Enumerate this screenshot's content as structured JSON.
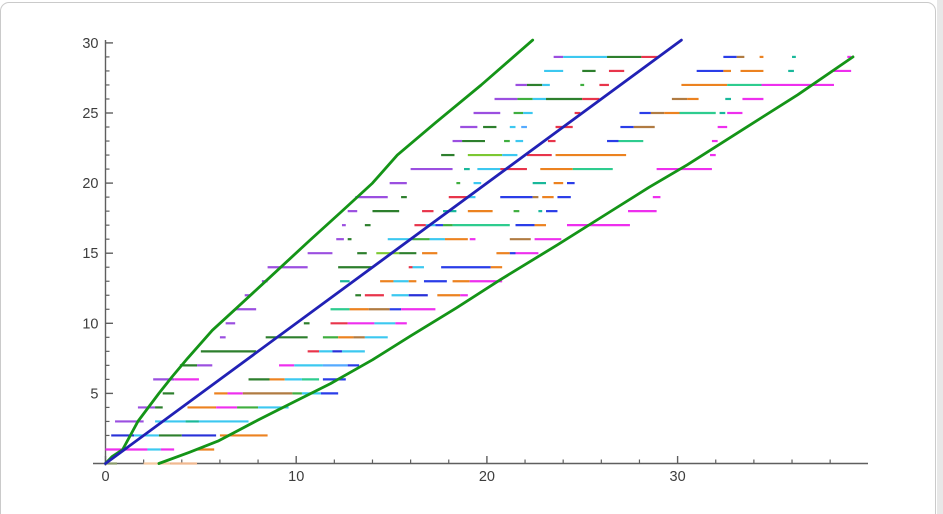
{
  "page": {
    "background": "#ffffff",
    "card_border": "#cacaca",
    "right_gutter": "#e8e8e8"
  },
  "chart_data": {
    "type": "line",
    "subtype": "interval-segment-plot",
    "title": "",
    "xlabel": "",
    "ylabel": "",
    "xlim": [
      0,
      40
    ],
    "ylim": [
      0,
      30
    ],
    "grid": false,
    "legend": "none",
    "axis_color": "#5f5f5f",
    "tick_label_color": "#3d3d3d",
    "x_major_ticks": [
      0,
      10,
      20,
      30
    ],
    "x_major_tick_labels": [
      "0",
      "10",
      "20",
      "30"
    ],
    "x_minor_step": 2,
    "y_major_ticks": [
      5,
      10,
      15,
      20,
      25,
      30
    ],
    "y_major_tick_labels": [
      "5",
      "10",
      "15",
      "20",
      "25",
      "30"
    ],
    "y_minor_step": 1,
    "curves": [
      {
        "name": "upper-bound-curve",
        "color": "#149417",
        "width": 2.8,
        "points": [
          [
            0,
            0
          ],
          [
            0.35,
            0.5
          ],
          [
            0.9,
            1
          ],
          [
            1.3,
            2
          ],
          [
            1.7,
            3
          ],
          [
            2.25,
            4
          ],
          [
            2.8,
            5
          ],
          [
            3.5,
            6.2
          ],
          [
            4.3,
            7.5
          ],
          [
            5.6,
            9.5
          ],
          [
            6.8,
            11
          ],
          [
            8.4,
            13
          ],
          [
            10.7,
            15.9
          ],
          [
            12.4,
            18
          ],
          [
            14,
            20
          ],
          [
            15.3,
            22
          ],
          [
            17.3,
            24.3
          ],
          [
            19.7,
            27
          ],
          [
            22.4,
            30.2
          ]
        ]
      },
      {
        "name": "diagonal-line",
        "color": "#2121b5",
        "width": 2.8,
        "points": [
          [
            0,
            0
          ],
          [
            30.2,
            30.2
          ]
        ]
      },
      {
        "name": "lower-bound-curve",
        "color": "#149417",
        "width": 2.8,
        "points": [
          [
            2.8,
            0
          ],
          [
            4.4,
            0.8
          ],
          [
            5.9,
            1.6
          ],
          [
            8.0,
            3.1
          ],
          [
            9.9,
            4.4
          ],
          [
            11.8,
            5.7
          ],
          [
            14.0,
            7.4
          ],
          [
            16.0,
            9.1
          ],
          [
            18.4,
            11.1
          ],
          [
            20.7,
            13.1
          ],
          [
            23.7,
            15.6
          ],
          [
            26.4,
            17.9
          ],
          [
            28.5,
            19.7
          ],
          [
            30.5,
            21.3
          ],
          [
            33.4,
            23.8
          ],
          [
            36.3,
            26.3
          ],
          [
            39.2,
            29.0
          ]
        ]
      }
    ],
    "segments": [
      [
        0,
        0.05,
        0.6,
        "#8a9a6a"
      ],
      [
        0,
        2.0,
        3.4,
        "#f6c9a2"
      ],
      [
        0,
        3.4,
        4.8,
        "#f0b990"
      ],
      [
        1,
        0.0,
        2.2,
        "#ee2fee"
      ],
      [
        1,
        2.2,
        2.9,
        "#3cc8f0"
      ],
      [
        1,
        2.9,
        3.6,
        "#ee2fee"
      ],
      [
        1,
        4.8,
        5.7,
        "#ec8220"
      ],
      [
        2,
        0.3,
        1.5,
        "#2831d8"
      ],
      [
        2,
        1.5,
        2.8,
        "#3cc8f0"
      ],
      [
        2,
        2.8,
        4.0,
        "#2d7f2d"
      ],
      [
        2,
        4.0,
        5.8,
        "#2831d8"
      ],
      [
        2,
        6.0,
        8.5,
        "#ec8220"
      ],
      [
        3,
        0.5,
        2.0,
        "#9b4fe0"
      ],
      [
        3,
        2.6,
        4.2,
        "#3cc8f0"
      ],
      [
        3,
        4.2,
        4.9,
        "#19b89a"
      ],
      [
        3,
        4.9,
        7.5,
        "#3cc8f0"
      ],
      [
        4,
        1.7,
        2.6,
        "#9b4fe0"
      ],
      [
        4,
        2.6,
        3.0,
        "#2d7f2d"
      ],
      [
        4,
        4.3,
        5.8,
        "#ec8220"
      ],
      [
        4,
        5.8,
        6.9,
        "#ee2fee"
      ],
      [
        4,
        6.9,
        8.0,
        "#3fae3f"
      ],
      [
        4,
        8.0,
        9.6,
        "#3cc8f0"
      ],
      [
        5,
        3.0,
        3.6,
        "#2d7f2d"
      ],
      [
        5,
        5.7,
        6.4,
        "#ec8220"
      ],
      [
        5,
        6.4,
        7.2,
        "#ee2fee"
      ],
      [
        5,
        7.2,
        9.8,
        "#b07b42"
      ],
      [
        5,
        9.8,
        10.3,
        "#3fae3f"
      ],
      [
        5,
        10.3,
        11.3,
        "#3cc8f0"
      ],
      [
        5,
        11.3,
        12.2,
        "#2a3de8"
      ],
      [
        6,
        2.5,
        3.6,
        "#9b4fe0"
      ],
      [
        6,
        3.6,
        4.9,
        "#ee2fee"
      ],
      [
        6,
        7.5,
        8.6,
        "#2d7f2d"
      ],
      [
        6,
        8.6,
        9.4,
        "#ec8220"
      ],
      [
        6,
        9.4,
        10.3,
        "#3cc8f0"
      ],
      [
        6,
        10.3,
        11.2,
        "#2ecc8f"
      ],
      [
        6,
        11.4,
        12.6,
        "#2a3de8"
      ],
      [
        7,
        3.9,
        4.8,
        "#2d7f2d"
      ],
      [
        7,
        4.8,
        5.6,
        "#9b4fe0"
      ],
      [
        7,
        9.1,
        9.9,
        "#ee2fee"
      ],
      [
        7,
        9.9,
        11.4,
        "#3cc8f0"
      ],
      [
        7,
        11.4,
        12.7,
        "#55aaff"
      ],
      [
        7,
        12.7,
        13.3,
        "#2a3de8"
      ],
      [
        8,
        5.0,
        7.9,
        "#2d7f2d"
      ],
      [
        8,
        10.6,
        11.2,
        "#e8354b"
      ],
      [
        8,
        11.2,
        11.9,
        "#3cc8f0"
      ],
      [
        8,
        11.9,
        12.4,
        "#2831d8"
      ],
      [
        8,
        12.4,
        13.6,
        "#3cc8f0"
      ],
      [
        9,
        6.0,
        6.3,
        "#9b4fe0"
      ],
      [
        9,
        8.4,
        10.6,
        "#2d7f2d"
      ],
      [
        9,
        11.4,
        12.2,
        "#3fae3f"
      ],
      [
        9,
        12.2,
        13.0,
        "#ec8220"
      ],
      [
        9,
        13.0,
        13.6,
        "#b07b42"
      ],
      [
        9,
        13.6,
        14.8,
        "#3cc8f0"
      ],
      [
        10,
        6.3,
        6.8,
        "#9b4fe0"
      ],
      [
        10,
        10.4,
        10.7,
        "#2d7f2d"
      ],
      [
        10,
        11.8,
        12.7,
        "#e8354b"
      ],
      [
        10,
        12.7,
        14.1,
        "#ee2fee"
      ],
      [
        10,
        14.1,
        15.2,
        "#3cc8f0"
      ],
      [
        10,
        15.2,
        15.8,
        "#ee2fee"
      ],
      [
        11,
        6.8,
        7.9,
        "#9b4fe0"
      ],
      [
        11,
        11.8,
        12.8,
        "#2ecc8f"
      ],
      [
        11,
        12.8,
        13.8,
        "#ec8220"
      ],
      [
        11,
        13.8,
        14.9,
        "#b07b42"
      ],
      [
        11,
        14.9,
        15.5,
        "#2a3de8"
      ],
      [
        11,
        15.5,
        17.3,
        "#ee2fee"
      ],
      [
        12,
        7.3,
        7.6,
        "#9b4fe0"
      ],
      [
        12,
        13.1,
        13.4,
        "#2d7f2d"
      ],
      [
        12,
        13.6,
        14.6,
        "#e8354b"
      ],
      [
        12,
        15.0,
        15.9,
        "#3cc8f0"
      ],
      [
        12,
        15.9,
        16.9,
        "#2831d8"
      ],
      [
        12,
        17.4,
        18.6,
        "#ec8220"
      ],
      [
        12,
        18.6,
        19.0,
        "#ee2fee"
      ],
      [
        13,
        8.2,
        8.5,
        "#9b4fe0"
      ],
      [
        13,
        12.3,
        12.8,
        "#19b89a"
      ],
      [
        13,
        14.4,
        15.1,
        "#ec8220"
      ],
      [
        13,
        15.1,
        15.9,
        "#3cc8f0"
      ],
      [
        13,
        15.9,
        16.3,
        "#ec8220"
      ],
      [
        13,
        16.7,
        17.9,
        "#2a3de8"
      ],
      [
        13,
        18.2,
        19.1,
        "#ec8220"
      ],
      [
        13,
        19.1,
        20.8,
        "#ee2fee"
      ],
      [
        14,
        8.5,
        10.6,
        "#9b4fe0"
      ],
      [
        14,
        12.2,
        14.0,
        "#2d7f2d"
      ],
      [
        14,
        15.9,
        16.1,
        "#e8354b"
      ],
      [
        14,
        16.1,
        16.7,
        "#3cc8f0"
      ],
      [
        14,
        17.6,
        20.2,
        "#2a3de8"
      ],
      [
        14,
        20.2,
        20.8,
        "#ec8220"
      ],
      [
        15,
        10.6,
        11.9,
        "#9b4fe0"
      ],
      [
        15,
        13.2,
        13.7,
        "#2d7f2d"
      ],
      [
        15,
        14.2,
        15.4,
        "#7cc832"
      ],
      [
        15,
        15.4,
        16.3,
        "#2d7f2d"
      ],
      [
        15,
        16.6,
        17.4,
        "#ec8220"
      ],
      [
        15,
        20.5,
        21.2,
        "#ec8220"
      ],
      [
        15,
        21.2,
        21.5,
        "#2a3de8"
      ],
      [
        15,
        21.5,
        22.7,
        "#ee2fee"
      ],
      [
        16,
        12.1,
        12.5,
        "#9b4fe0"
      ],
      [
        16,
        12.7,
        12.9,
        "#2d7f2d"
      ],
      [
        16,
        14.8,
        16.1,
        "#3cc8f0"
      ],
      [
        16,
        16.1,
        17.0,
        "#3fae3f"
      ],
      [
        16,
        17.0,
        17.8,
        "#3cc8f0"
      ],
      [
        16,
        17.8,
        19.0,
        "#ec8220"
      ],
      [
        16,
        19.1,
        19.4,
        "#ee2fee"
      ],
      [
        16,
        21.2,
        22.3,
        "#b07b42"
      ],
      [
        16,
        22.5,
        23.9,
        "#ee2fee"
      ],
      [
        17,
        12.4,
        12.6,
        "#9b4fe0"
      ],
      [
        17,
        13.6,
        13.9,
        "#2d7f2d"
      ],
      [
        17,
        16.2,
        16.8,
        "#e8354b"
      ],
      [
        17,
        16.8,
        17.3,
        "#3cc8f0"
      ],
      [
        17,
        17.3,
        17.7,
        "#2a3de8"
      ],
      [
        17,
        17.7,
        18.2,
        "#3fae3f"
      ],
      [
        17,
        18.2,
        21.2,
        "#2ecc8f"
      ],
      [
        17,
        21.5,
        22.5,
        "#2a3de8"
      ],
      [
        17,
        22.5,
        23.1,
        "#ec8220"
      ],
      [
        17,
        24.2,
        27.5,
        "#ee2fee"
      ],
      [
        18,
        12.7,
        13.2,
        "#9b4fe0"
      ],
      [
        18,
        14.0,
        15.4,
        "#2d7f2d"
      ],
      [
        18,
        16.6,
        17.2,
        "#e8354b"
      ],
      [
        18,
        17.7,
        18.4,
        "#19b89a"
      ],
      [
        18,
        19.0,
        20.3,
        "#ec8220"
      ],
      [
        18,
        21.4,
        21.7,
        "#3fae3f"
      ],
      [
        18,
        22.7,
        22.9,
        "#19b89a"
      ],
      [
        18,
        23.1,
        23.7,
        "#2a3de8"
      ],
      [
        18,
        27.4,
        28.9,
        "#ee2fee"
      ],
      [
        19,
        13.1,
        14.8,
        "#9b4fe0"
      ],
      [
        19,
        15.5,
        15.8,
        "#2d7f2d"
      ],
      [
        19,
        18.0,
        19.0,
        "#e8354b"
      ],
      [
        19,
        19.0,
        19.4,
        "#3cc8f0"
      ],
      [
        19,
        20.7,
        22.4,
        "#2a3de8"
      ],
      [
        19,
        22.4,
        22.7,
        "#b07b42"
      ],
      [
        19,
        22.9,
        23.5,
        "#ec8220"
      ],
      [
        19,
        23.7,
        24.4,
        "#2a3de8"
      ],
      [
        19,
        28.7,
        29.1,
        "#ee2fee"
      ],
      [
        20,
        14.9,
        15.8,
        "#9b4fe0"
      ],
      [
        20,
        18.4,
        18.6,
        "#3fae3f"
      ],
      [
        20,
        19.3,
        19.7,
        "#3cc8f0"
      ],
      [
        20,
        22.4,
        23.1,
        "#19b89a"
      ],
      [
        20,
        23.5,
        24.0,
        "#ec8220"
      ],
      [
        20,
        24.2,
        24.6,
        "#2a3de8"
      ],
      [
        21,
        16.0,
        18.2,
        "#9b4fe0"
      ],
      [
        21,
        18.8,
        19.1,
        "#19b89a"
      ],
      [
        21,
        19.5,
        20.7,
        "#3cc8f0"
      ],
      [
        21,
        20.7,
        22.1,
        "#e8354b"
      ],
      [
        21,
        22.8,
        24.5,
        "#ec8220"
      ],
      [
        21,
        24.5,
        26.6,
        "#2ecc8f"
      ],
      [
        21,
        28.9,
        31.8,
        "#ee2fee"
      ],
      [
        22,
        17.6,
        18.3,
        "#2d7f2d"
      ],
      [
        22,
        19.0,
        20.8,
        "#7cc832"
      ],
      [
        22,
        20.8,
        21.6,
        "#3cc8f0"
      ],
      [
        22,
        22.1,
        23.4,
        "#e8354b"
      ],
      [
        22,
        23.6,
        27.3,
        "#ec8220"
      ],
      [
        22,
        31.7,
        32.0,
        "#ee2fee"
      ],
      [
        23,
        18.2,
        18.7,
        "#9b4fe0"
      ],
      [
        23,
        18.7,
        19.9,
        "#2d7f2d"
      ],
      [
        23,
        20.9,
        21.2,
        "#3fae3f"
      ],
      [
        23,
        21.5,
        21.9,
        "#3cc8f0"
      ],
      [
        23,
        23.2,
        23.6,
        "#e8354b"
      ],
      [
        23,
        26.3,
        26.9,
        "#2a3de8"
      ],
      [
        23,
        26.9,
        28.2,
        "#2ecc8f"
      ],
      [
        23,
        31.8,
        32.1,
        "#ee2fee"
      ],
      [
        24,
        18.6,
        19.5,
        "#9b4fe0"
      ],
      [
        24,
        19.8,
        20.5,
        "#2d7f2d"
      ],
      [
        24,
        21.2,
        21.5,
        "#3cc8f0"
      ],
      [
        24,
        21.8,
        22.1,
        "#55aaff"
      ],
      [
        24,
        23.6,
        24.5,
        "#e8354b"
      ],
      [
        24,
        27.0,
        27.7,
        "#2a3de8"
      ],
      [
        24,
        27.7,
        28.8,
        "#b07b42"
      ],
      [
        24,
        32.1,
        32.6,
        "#ee2fee"
      ],
      [
        25,
        19.3,
        20.7,
        "#9b4fe0"
      ],
      [
        25,
        21.4,
        21.9,
        "#3fae3f"
      ],
      [
        25,
        21.9,
        22.4,
        "#3cc8f0"
      ],
      [
        25,
        24.6,
        24.9,
        "#e8354b"
      ],
      [
        25,
        28.0,
        28.6,
        "#2a3de8"
      ],
      [
        25,
        28.6,
        29.3,
        "#b07b42"
      ],
      [
        25,
        29.3,
        30.1,
        "#ec8220"
      ],
      [
        25,
        30.1,
        32.0,
        "#2ecc8f"
      ],
      [
        25,
        32.2,
        32.5,
        "#19b89a"
      ],
      [
        25,
        32.6,
        33.4,
        "#ee2fee"
      ],
      [
        26,
        20.4,
        21.6,
        "#9b4fe0"
      ],
      [
        26,
        21.6,
        22.4,
        "#3fae3f"
      ],
      [
        26,
        22.4,
        23.1,
        "#3cc8f0"
      ],
      [
        26,
        23.1,
        25.0,
        "#2d7f2d"
      ],
      [
        26,
        25.0,
        25.9,
        "#e8354b"
      ],
      [
        26,
        29.7,
        30.5,
        "#b07b42"
      ],
      [
        26,
        30.5,
        31.1,
        "#ec8220"
      ],
      [
        26,
        32.5,
        32.8,
        "#19b89a"
      ],
      [
        26,
        33.4,
        34.5,
        "#ee2fee"
      ],
      [
        27,
        21.5,
        22.1,
        "#9b4fe0"
      ],
      [
        27,
        22.1,
        22.9,
        "#2d7f2d"
      ],
      [
        27,
        22.9,
        23.3,
        "#3cc8f0"
      ],
      [
        27,
        24.9,
        25.1,
        "#3fae3f"
      ],
      [
        27,
        25.9,
        26.4,
        "#e8354b"
      ],
      [
        27,
        30.2,
        32.6,
        "#ec8220"
      ],
      [
        27,
        32.6,
        34.4,
        "#2ecc8f"
      ],
      [
        27,
        34.4,
        38.2,
        "#ee2fee"
      ],
      [
        28,
        23.0,
        24.0,
        "#3cc8f0"
      ],
      [
        28,
        25.0,
        25.7,
        "#2d7f2d"
      ],
      [
        28,
        26.4,
        27.2,
        "#e8354b"
      ],
      [
        28,
        31.0,
        32.4,
        "#2a3de8"
      ],
      [
        28,
        32.4,
        32.8,
        "#ec8220"
      ],
      [
        28,
        33.3,
        34.5,
        "#ec8220"
      ],
      [
        28,
        35.8,
        36.1,
        "#19b89a"
      ],
      [
        28,
        38.2,
        39.1,
        "#ee2fee"
      ],
      [
        29,
        23.5,
        24.0,
        "#9b4fe0"
      ],
      [
        29,
        24.0,
        26.3,
        "#3cc8f0"
      ],
      [
        29,
        26.3,
        28.1,
        "#2d7f2d"
      ],
      [
        29,
        28.1,
        29.0,
        "#e8354b"
      ],
      [
        29,
        32.4,
        33.1,
        "#2a3de8"
      ],
      [
        29,
        33.1,
        33.5,
        "#b07b42"
      ],
      [
        29,
        34.3,
        34.5,
        "#ec8220"
      ],
      [
        29,
        36.0,
        36.2,
        "#19b89a"
      ],
      [
        29,
        38.9,
        39.1,
        "#ee2fee"
      ]
    ]
  }
}
